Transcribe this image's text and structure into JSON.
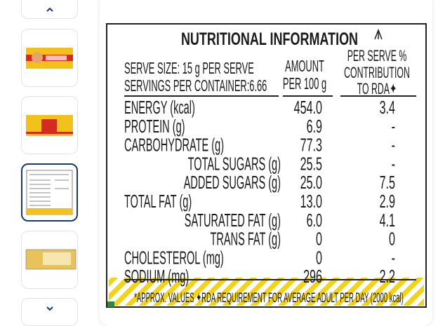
{
  "label": {
    "title": "NUTRITIONAL INFORMATION",
    "serve_size": "SERVE SIZE: 15 g PER SERVE",
    "servings": "SERVINGS PER CONTAINER:6.66",
    "columns": [
      [
        "AMOUNT",
        "PER 100 g"
      ],
      [
        "PER SERVE %",
        "CONTRIBUTION",
        "TO RDA✦"
      ]
    ],
    "rows": [
      [
        "ENERGY (kcal)",
        "454.0",
        "3.4"
      ],
      [
        "PROTEIN (g)",
        "6.9",
        "-"
      ],
      [
        "CARBOHYDRATE (g)",
        "77.3",
        "-"
      ],
      [
        "TOTAL SUGARS (g)",
        "25.5",
        "-"
      ],
      [
        "ADDED SUGARS (g)",
        "25.0",
        "7.5"
      ],
      [
        "TOTAL FAT (g)",
        "13.0",
        "2.9"
      ],
      [
        "SATURATED FAT (g)",
        "6.0",
        "4.1"
      ],
      [
        "TRANS FAT (g)",
        "0",
        "0"
      ],
      [
        "CHOLESTEROL (mg)",
        "0",
        "-"
      ],
      [
        "SODIUM (mg)",
        "296",
        "2.2"
      ]
    ],
    "footnote": "*APPROX. VALUES ✦RDA REQUIREMENT FOR AVERAGE ADULT PER DAY (2000 kcal)"
  }
}
